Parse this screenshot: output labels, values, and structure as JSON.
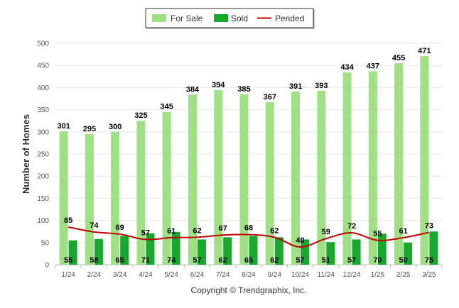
{
  "chart_data": {
    "type": "bar",
    "categories": [
      "1/24",
      "2/24",
      "3/24",
      "4/24",
      "5/24",
      "6/24",
      "7/24",
      "8/24",
      "9/24",
      "10/24",
      "11/24",
      "12/24",
      "1/25",
      "2/25",
      "3/25"
    ],
    "series": [
      {
        "name": "For Sale",
        "kind": "bar",
        "color": "#9fe085",
        "values": [
          301,
          295,
          300,
          325,
          345,
          384,
          394,
          385,
          367,
          391,
          393,
          434,
          437,
          455,
          471
        ]
      },
      {
        "name": "Sold",
        "kind": "bar",
        "color": "#18a82e",
        "values": [
          55,
          58,
          65,
          71,
          74,
          57,
          62,
          65,
          62,
          57,
          51,
          57,
          70,
          50,
          75
        ]
      },
      {
        "name": "Pended",
        "kind": "line",
        "color": "#c00000",
        "values": [
          85,
          74,
          69,
          57,
          61,
          62,
          67,
          68,
          62,
          40,
          59,
          72,
          55,
          61,
          73
        ]
      }
    ],
    "ylabel": "Number of Homes",
    "xlabel": "",
    "ylim": [
      0,
      500
    ],
    "yticks": [
      0,
      50,
      100,
      150,
      200,
      250,
      300,
      350,
      400,
      450,
      500
    ],
    "grid": true,
    "legend_position": "top-center"
  },
  "footer": {
    "copyright": "Copyright © Trendgraphix, Inc."
  }
}
